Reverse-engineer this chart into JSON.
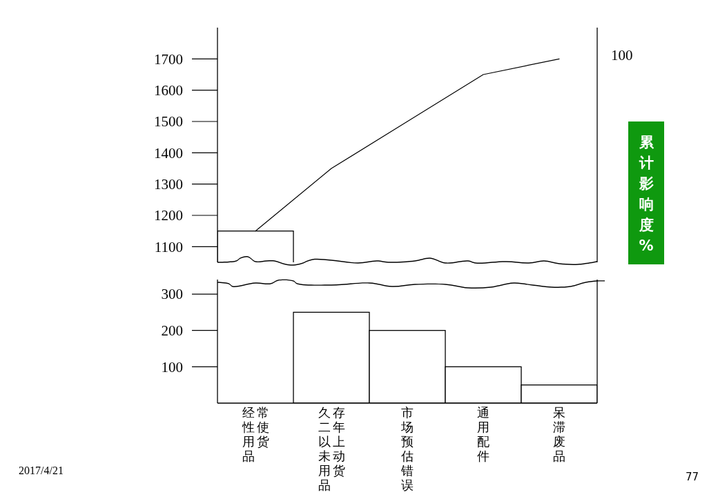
{
  "chart_data": [
    {
      "type": "bar",
      "categories": [
        "经常性使用货品",
        "久存二年以上未动用货品",
        "市场预估错误",
        "通用配件",
        "呆滞废品"
      ],
      "tick_labels": "y",
      "ylim": [
        1050,
        1800
      ],
      "yticks": [
        1100,
        1200,
        1300,
        1400,
        1500,
        1600,
        1700
      ],
      "y2label": "累计影响度%",
      "series": [
        {
          "type": "bar",
          "color": "#ffffff",
          "values": [
            1150,
            null,
            null,
            null,
            null
          ]
        },
        {
          "type": "line",
          "color": "#000000",
          "values": [
            1150,
            1350,
            1500,
            1650,
            1700
          ]
        }
      ],
      "annotations": [
        "100"
      ]
    },
    {
      "type": "bar",
      "categories": [
        "经常性使用货品",
        "久存二年以上未动用货品",
        "市场预估错误",
        "通用配件",
        "呆滞废品"
      ],
      "ylim": [
        0,
        340
      ],
      "yticks": [
        100,
        200,
        300
      ],
      "values": [
        null,
        250,
        200,
        100,
        50
      ],
      "color": "#ffffff",
      "annotations": [
        "2017/4/21",
        "77"
      ]
    }
  ]
}
